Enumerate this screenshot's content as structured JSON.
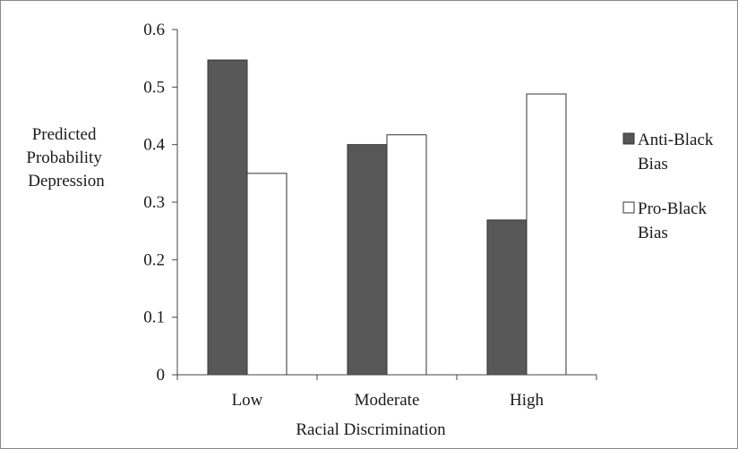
{
  "chart_data": {
    "type": "bar",
    "title": "",
    "xlabel": "Racial Discrimination",
    "ylabel_lines": [
      "Predicted",
      "Probability",
      "Depression"
    ],
    "categories": [
      "Low",
      "Moderate",
      "High"
    ],
    "ylim": [
      0,
      0.6
    ],
    "yticks": [
      "0",
      "0.1",
      "0.2",
      "0.3",
      "0.4",
      "0.5",
      "0.6"
    ],
    "grid": false,
    "legend_position": "right",
    "series": [
      {
        "name_lines": [
          "Anti-Black",
          "Bias"
        ],
        "values": [
          0.547,
          0.4,
          0.269
        ],
        "color": "#575757"
      },
      {
        "name_lines": [
          "Pro-Black",
          "Bias"
        ],
        "values": [
          0.35,
          0.417,
          0.488
        ],
        "color": "#ffffff"
      }
    ]
  }
}
